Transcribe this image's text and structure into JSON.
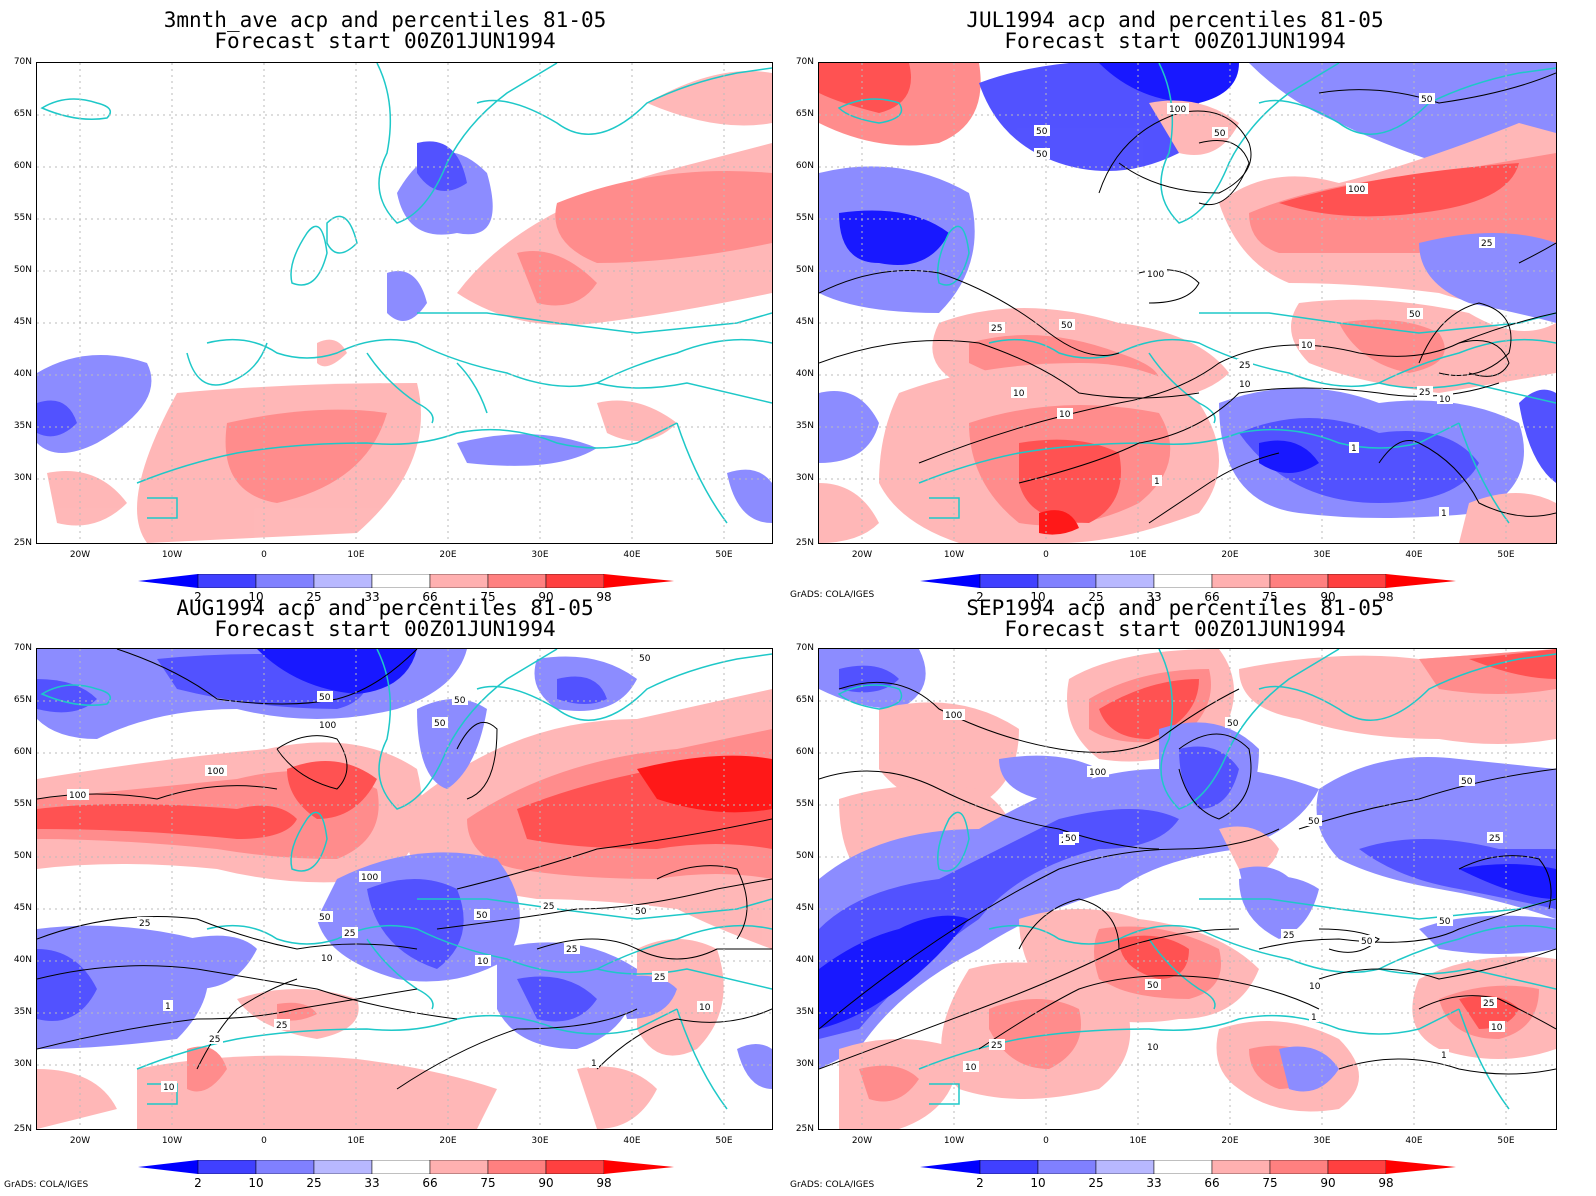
{
  "panels": [
    {
      "title1": "3mnth_ave acp and percentiles 81-05",
      "title2": "Forecast start 00Z01JUN1994",
      "credit": ""
    },
    {
      "title1": "JUL1994 acp and percentiles 81-05",
      "title2": "Forecast start 00Z01JUN1994",
      "credit": "GrADS: COLA/IGES"
    },
    {
      "title1": "AUG1994 acp and percentiles 81-05",
      "title2": "Forecast start 00Z01JUN1994",
      "credit": "GrADS: COLA/IGES"
    },
    {
      "title1": "SEP1994 acp and percentiles 81-05",
      "title2": "Forecast start 00Z01JUN1994",
      "credit": "GrADS: COLA/IGES"
    }
  ],
  "axes": {
    "lat_labels": [
      "70N",
      "65N",
      "60N",
      "55N",
      "50N",
      "45N",
      "40N",
      "35N",
      "30N",
      "25N"
    ],
    "lon_labels": [
      "20W",
      "10W",
      "0",
      "10E",
      "20E",
      "30E",
      "40E",
      "50E"
    ]
  },
  "colorbar": {
    "labels": [
      "2",
      "10",
      "25",
      "33",
      "66",
      "75",
      "90",
      "98"
    ],
    "colors": [
      "#0000ff",
      "#4040ff",
      "#8080ff",
      "#b8b8ff",
      "#ffffff",
      "#ffb0b0",
      "#ff8080",
      "#ff4040",
      "#ff0000"
    ]
  },
  "contours": {
    "panel2": [
      "100",
      "50",
      "50",
      "50",
      "100",
      "50",
      "100",
      "25",
      "50",
      "25",
      "50",
      "10",
      "10",
      "10",
      "25",
      "10",
      "25",
      "10",
      "1",
      "1",
      "1"
    ],
    "panel3": [
      "50",
      "50",
      "50",
      "50",
      "100",
      "100",
      "100",
      "100",
      "50",
      "25",
      "25",
      "50",
      "25",
      "10",
      "25",
      "10",
      "1",
      "25",
      "10",
      "25",
      "10",
      "1",
      "25",
      "50"
    ],
    "panel4": [
      "100",
      "100",
      "50",
      "50",
      "50",
      "25",
      "25",
      "50",
      "50",
      "10",
      "25",
      "10",
      "25",
      "50",
      "25",
      "10",
      "1",
      "10",
      "50",
      "1"
    ]
  }
}
